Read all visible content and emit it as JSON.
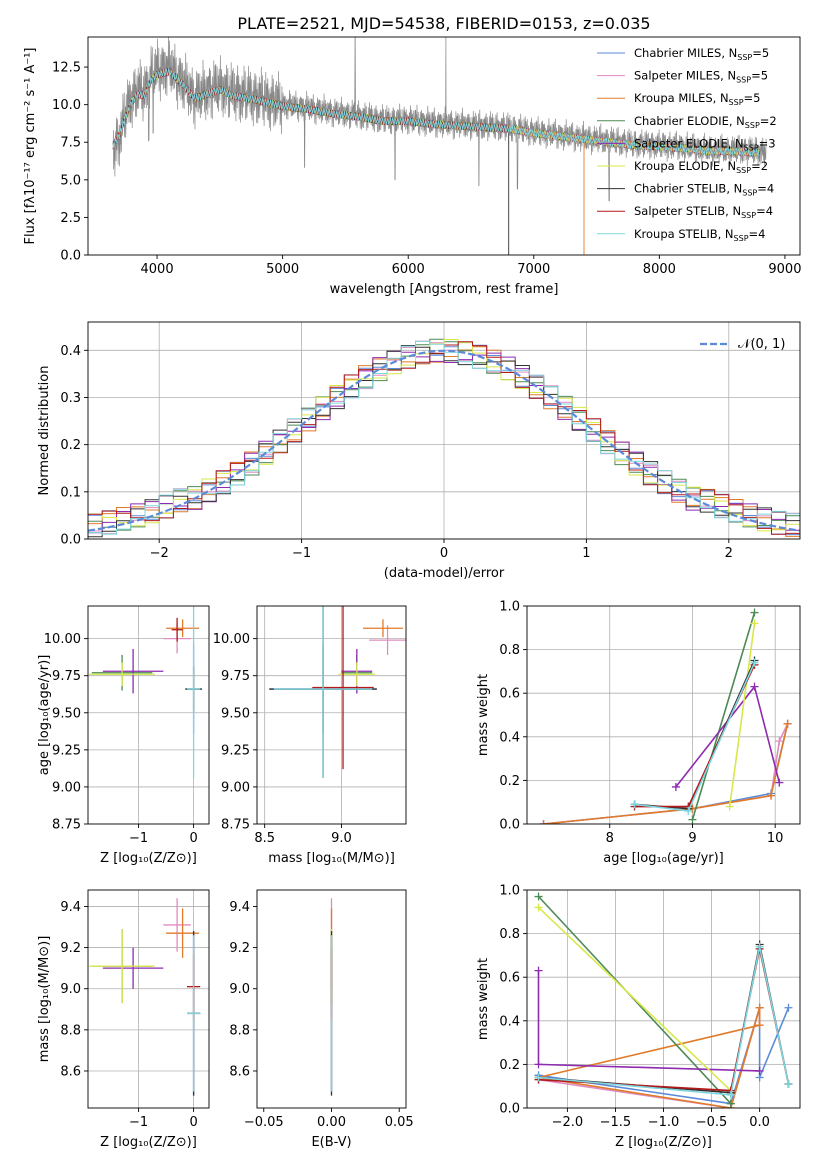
{
  "figure_title": "PLATE=2521, MJD=54538, FIBERID=0153, z=0.035",
  "legend_entries": [
    {
      "name": "Chabrier MILES, N_SSP=5",
      "prefix": "Chabrier MILES, N",
      "sub": "SSP",
      "suffix": "=5",
      "color": "#5b8bd8"
    },
    {
      "name": "Salpeter MILES, N_SSP=5",
      "prefix": "Salpeter MILES, N",
      "sub": "SSP",
      "suffix": "=5",
      "color": "#e08cc0"
    },
    {
      "name": "Kroupa MILES, N_SSP=5",
      "prefix": "Kroupa MILES, N",
      "sub": "SSP",
      "suffix": "=5",
      "color": "#e07b2a"
    },
    {
      "name": "Chabrier ELODIE, N_SSP=2",
      "prefix": "Chabrier ELODIE, N",
      "sub": "SSP",
      "suffix": "=2",
      "color": "#4e8a55"
    },
    {
      "name": "Salpeter ELODIE, N_SSP=3",
      "prefix": "Salpeter ELODIE, N",
      "sub": "SSP",
      "suffix": "=3",
      "color": "#8e2bb0"
    },
    {
      "name": "Kroupa ELODIE, N_SSP=2",
      "prefix": "Kroupa ELODIE, N",
      "sub": "SSP",
      "suffix": "=2",
      "color": "#d8e84a"
    },
    {
      "name": "Chabrier STELIB, N_SSP=4",
      "prefix": "Chabrier STELIB, N",
      "sub": "SSP",
      "suffix": "=4",
      "color": "#333333"
    },
    {
      "name": "Salpeter STELIB, N_SSP=4",
      "prefix": "Salpeter STELIB, N",
      "sub": "SSP",
      "suffix": "=4",
      "color": "#b21a1a"
    },
    {
      "name": "Kroupa STELIB, N_SSP=4",
      "prefix": "Kroupa STELIB, N",
      "sub": "SSP",
      "suffix": "=4",
      "color": "#7dd6de"
    }
  ],
  "chart_data": [
    {
      "id": "spectrum",
      "type": "line",
      "xlabel": "wavelength [Angstrom, rest frame]",
      "ylabel": "Flux [fλ10⁻¹⁷ erg cm⁻² s⁻¹ A⁻¹]",
      "xlim": [
        3450,
        9120
      ],
      "ylim": [
        0,
        14.5
      ],
      "xticks": [
        4000,
        5000,
        6000,
        7000,
        8000,
        9000
      ],
      "yticks": [
        0.0,
        2.5,
        5.0,
        7.5,
        10.0,
        12.5
      ],
      "data_color": "#888888",
      "data_x": [
        3650,
        3700,
        3750,
        3800,
        3850,
        3900,
        3950,
        4000,
        4100,
        4200,
        4300,
        4400,
        4500,
        4600,
        4800,
        5000,
        5200,
        5400,
        5600,
        5800,
        6000,
        6200,
        6400,
        6600,
        6800,
        7000,
        7200,
        7400,
        7600,
        7800,
        8000,
        8200,
        8400,
        8600,
        8800
      ],
      "data_y": [
        7.0,
        7.8,
        9.5,
        10.5,
        11.0,
        10.8,
        12.0,
        12.3,
        12.5,
        11.5,
        10.5,
        10.9,
        11.2,
        10.8,
        10.5,
        10.0,
        9.8,
        9.5,
        9.3,
        9.0,
        9.0,
        8.8,
        8.7,
        8.6,
        8.5,
        8.2,
        8.0,
        7.8,
        7.6,
        7.4,
        7.3,
        7.2,
        7.0,
        7.0,
        6.9
      ],
      "model_x": [
        3650,
        3700,
        3750,
        3800,
        3850,
        3900,
        3950,
        4000,
        4100,
        4200,
        4300,
        4400,
        4500,
        4600,
        4800,
        5000,
        5200,
        5400,
        5600,
        5800,
        6000,
        6200,
        6400,
        6600,
        6800,
        7000,
        7200,
        7400,
        7600,
        7800,
        8000,
        8200,
        8400,
        8600,
        8800
      ],
      "model_y": [
        7.3,
        8.0,
        9.2,
        10.2,
        10.7,
        10.6,
        11.6,
        12.0,
        12.2,
        11.4,
        10.4,
        10.7,
        11.0,
        10.6,
        10.3,
        9.9,
        9.7,
        9.4,
        9.2,
        8.9,
        8.9,
        8.7,
        8.6,
        8.5,
        8.4,
        8.1,
        7.9,
        7.7,
        7.5,
        7.3,
        7.2,
        7.1,
        6.9,
        6.9,
        6.8
      ],
      "model_end_x": [
        8800,
        8800,
        7400,
        8800,
        8800,
        8800,
        6800,
        8800,
        8800
      ]
    },
    {
      "id": "residuals",
      "type": "histogram",
      "xlabel": "(data-model)/error",
      "ylabel": "Normed distribution",
      "xlim": [
        -2.5,
        2.5
      ],
      "ylim": [
        0,
        0.46
      ],
      "xticks": [
        -2,
        -1,
        0,
        1,
        2
      ],
      "yticks": [
        0.0,
        0.1,
        0.2,
        0.3,
        0.4
      ],
      "bin_width": 0.1,
      "reference_curve": {
        "name": "𝒩(0, 1)",
        "color": "#5b8bd8"
      }
    },
    {
      "id": "age_vs_Z",
      "type": "scatter",
      "xlabel": "Z [log₁₀(Z/Z⊙)]",
      "ylabel": "age  [log₁₀(age/yr)]",
      "xlim": [
        -1.92,
        0.28
      ],
      "ylim": [
        8.75,
        10.22
      ],
      "xticks": [
        -1,
        0
      ],
      "yticks": [
        8.75,
        9.0,
        9.25,
        9.5,
        9.75,
        10.0
      ],
      "points": [
        {
          "model": 0,
          "x": 0.0,
          "xerr": 0.15,
          "y": 9.66,
          "yerr": 0.3
        },
        {
          "model": 1,
          "x": -0.3,
          "xerr": 0.25,
          "y": 10.0,
          "yerr": 0.1
        },
        {
          "model": 2,
          "x": -0.2,
          "xerr": 0.3,
          "y": 10.07,
          "yerr": 0.06
        },
        {
          "model": 3,
          "x": -1.3,
          "xerr": 0.55,
          "y": 9.77,
          "yerr": 0.12
        },
        {
          "model": 4,
          "x": -1.1,
          "xerr": 0.55,
          "y": 9.78,
          "yerr": 0.15
        },
        {
          "model": 5,
          "x": -1.3,
          "xerr": 0.6,
          "y": 9.76,
          "yerr": 0.08
        },
        {
          "model": 6,
          "x": 0.0,
          "xerr": 0.15,
          "y": 9.66,
          "yerr": 0.15
        },
        {
          "model": 7,
          "x": -0.3,
          "xerr": 0.1,
          "y": 10.06,
          "yerr": 0.08
        },
        {
          "model": 8,
          "x": 0.0,
          "xerr": 0.12,
          "y": 9.66,
          "yerr": 0.6
        }
      ]
    },
    {
      "id": "age_vs_mass",
      "type": "scatter",
      "xlabel": "mass [log₁₀(M/M⊙)]",
      "ylabel": "",
      "xlim": [
        8.45,
        9.42
      ],
      "ylim": [
        8.75,
        10.22
      ],
      "xticks": [
        8.5,
        9.0
      ],
      "yticks": [
        8.75,
        9.0,
        9.25,
        9.5,
        9.75,
        10.0
      ],
      "points": [
        {
          "model": 0,
          "x": 8.88,
          "xerr": 0.35,
          "y": 9.66,
          "yerr": 0.3
        },
        {
          "model": 1,
          "x": 9.3,
          "xerr": 0.12,
          "y": 9.99,
          "yerr": 0.1
        },
        {
          "model": 2,
          "x": 9.27,
          "xerr": 0.13,
          "y": 10.07,
          "yerr": 0.06
        },
        {
          "model": 3,
          "x": 9.1,
          "xerr": 0.1,
          "y": 9.77,
          "yerr": 0.12
        },
        {
          "model": 4,
          "x": 9.1,
          "xerr": 0.1,
          "y": 9.78,
          "yerr": 0.15
        },
        {
          "model": 5,
          "x": 9.1,
          "xerr": 0.12,
          "y": 9.76,
          "yerr": 0.08
        },
        {
          "model": 6,
          "x": 8.88,
          "xerr": 0.35,
          "y": 9.66,
          "yerr": 0.6
        },
        {
          "model": 7,
          "x": 9.01,
          "xerr": 0.2,
          "y": 9.67,
          "yerr": 0.55
        },
        {
          "model": 8,
          "x": 8.88,
          "xerr": 0.32,
          "y": 9.66,
          "yerr": 0.6
        }
      ]
    },
    {
      "id": "weight_vs_age",
      "type": "line",
      "xlabel": "age  [log₁₀(age/yr)]",
      "ylabel": "mass weight",
      "xlim": [
        7.0,
        10.3
      ],
      "ylim": [
        0,
        1.0
      ],
      "xticks": [
        8,
        9,
        10
      ],
      "yticks": [
        0.0,
        0.2,
        0.4,
        0.6,
        0.8,
        1.0
      ],
      "series": [
        {
          "model": 0,
          "x": [
            7.2,
            9.0,
            9.95,
            10.15
          ],
          "y": [
            0.0,
            0.07,
            0.14,
            0.46
          ]
        },
        {
          "model": 1,
          "x": [
            7.2,
            9.0,
            9.95,
            10.05,
            10.15
          ],
          "y": [
            0.0,
            0.07,
            0.13,
            0.38,
            0.46
          ]
        },
        {
          "model": 2,
          "x": [
            7.2,
            9.0,
            9.95,
            10.15
          ],
          "y": [
            0.0,
            0.07,
            0.13,
            0.46
          ]
        },
        {
          "model": 3,
          "x": [
            9.0,
            9.75
          ],
          "y": [
            0.02,
            0.97
          ]
        },
        {
          "model": 4,
          "x": [
            8.8,
            9.75,
            10.05
          ],
          "y": [
            0.17,
            0.63,
            0.19
          ]
        },
        {
          "model": 5,
          "x": [
            9.45,
            9.75
          ],
          "y": [
            0.08,
            0.92
          ]
        },
        {
          "model": 6,
          "x": [
            8.3,
            8.95,
            9.75
          ],
          "y": [
            0.09,
            0.07,
            0.75
          ]
        },
        {
          "model": 7,
          "x": [
            8.3,
            8.95,
            9.75
          ],
          "y": [
            0.08,
            0.08,
            0.73
          ]
        },
        {
          "model": 8,
          "x": [
            8.3,
            8.95,
            9.75
          ],
          "y": [
            0.09,
            0.06,
            0.74
          ]
        }
      ]
    },
    {
      "id": "mass_vs_Z",
      "type": "scatter",
      "xlabel": "Z [log₁₀(Z/Z⊙)]",
      "ylabel": "mass [log₁₀(M/M⊙)]",
      "xlim": [
        -1.92,
        0.28
      ],
      "ylim": [
        8.42,
        9.48
      ],
      "xticks": [
        -1,
        0
      ],
      "yticks": [
        8.6,
        8.8,
        9.0,
        9.2,
        9.4
      ],
      "points": [
        {
          "model": 0,
          "x": 0.0,
          "xerr": 0.12,
          "y": 8.88,
          "yerr": 0.4
        },
        {
          "model": 1,
          "x": -0.3,
          "xerr": 0.25,
          "y": 9.31,
          "yerr": 0.13
        },
        {
          "model": 2,
          "x": -0.2,
          "xerr": 0.3,
          "y": 9.27,
          "yerr": 0.12
        },
        {
          "model": 3,
          "x": -1.3,
          "xerr": 0.55,
          "y": 9.11,
          "yerr": 0.18
        },
        {
          "model": 4,
          "x": -1.1,
          "xerr": 0.55,
          "y": 9.1,
          "yerr": 0.1
        },
        {
          "model": 5,
          "x": -1.3,
          "xerr": 0.6,
          "y": 9.11,
          "yerr": 0.18
        },
        {
          "model": 6,
          "x": 0.0,
          "xerr": 0.12,
          "y": 8.88,
          "yerr": 0.4
        },
        {
          "model": 7,
          "x": 0.0,
          "xerr": 0.12,
          "y": 9.01,
          "yerr": 0.16
        },
        {
          "model": 8,
          "x": 0.0,
          "xerr": 0.12,
          "y": 8.88,
          "yerr": 0.38
        }
      ]
    },
    {
      "id": "mass_vs_EBV",
      "type": "scatter",
      "xlabel": "E(B-V)",
      "ylabel": "",
      "xlim": [
        -0.055,
        0.055
      ],
      "ylim": [
        8.42,
        9.48
      ],
      "xticks": [
        -0.05,
        0.0,
        0.05
      ],
      "yticks": [
        8.6,
        8.8,
        9.0,
        9.2,
        9.4
      ],
      "points": [
        {
          "model": 0,
          "x": 0.0,
          "xerr": 0.0,
          "y": 8.88,
          "yerr": 0.38
        },
        {
          "model": 1,
          "x": 0.0,
          "xerr": 0.0,
          "y": 9.31,
          "yerr": 0.13
        },
        {
          "model": 2,
          "x": 0.0,
          "xerr": 0.0,
          "y": 9.27,
          "yerr": 0.12
        },
        {
          "model": 3,
          "x": 0.0,
          "xerr": 0.0,
          "y": 9.11,
          "yerr": 0.18
        },
        {
          "model": 4,
          "x": 0.0,
          "xerr": 0.0,
          "y": 9.1,
          "yerr": 0.1
        },
        {
          "model": 5,
          "x": 0.0,
          "xerr": 0.0,
          "y": 9.11,
          "yerr": 0.18
        },
        {
          "model": 6,
          "x": 0.0,
          "xerr": 0.0,
          "y": 8.88,
          "yerr": 0.4
        },
        {
          "model": 7,
          "x": 0.0,
          "xerr": 0.0,
          "y": 9.01,
          "yerr": 0.16
        },
        {
          "model": 8,
          "x": 0.0,
          "xerr": 0.0,
          "y": 8.88,
          "yerr": 0.38
        }
      ]
    },
    {
      "id": "weight_vs_Z",
      "type": "line",
      "xlabel": "Z [log₁₀(Z/Z⊙)]",
      "ylabel": "mass weight",
      "xlim": [
        -2.42,
        0.42
      ],
      "ylim": [
        0,
        1.0
      ],
      "xticks": [
        -2.0,
        -1.5,
        -1.0,
        -0.5,
        0.0
      ],
      "yticks": [
        0.0,
        0.2,
        0.4,
        0.6,
        0.8,
        1.0
      ],
      "series": [
        {
          "model": 0,
          "x": [
            -2.3,
            -0.3,
            0.0,
            0.0,
            0.3
          ],
          "y": [
            0.15,
            0.02,
            0.46,
            0.14,
            0.46
          ]
        },
        {
          "model": 1,
          "x": [
            -2.3,
            -0.3,
            0.0,
            0.0
          ],
          "y": [
            0.13,
            0.0,
            0.46,
            0.38
          ]
        },
        {
          "model": 2,
          "x": [
            -2.3,
            -0.3,
            0.0,
            0.0,
            -2.3
          ],
          "y": [
            0.14,
            0.0,
            0.46,
            0.38,
            0.14
          ]
        },
        {
          "model": 3,
          "x": [
            -2.3,
            -0.3
          ],
          "y": [
            0.97,
            0.02
          ]
        },
        {
          "model": 4,
          "x": [
            -2.3,
            -2.3,
            0.0
          ],
          "y": [
            0.63,
            0.2,
            0.17
          ]
        },
        {
          "model": 5,
          "x": [
            -2.3,
            -0.3
          ],
          "y": [
            0.92,
            0.08
          ]
        },
        {
          "model": 6,
          "x": [
            -2.3,
            -0.3,
            0.0,
            0.3
          ],
          "y": [
            0.14,
            0.07,
            0.75,
            0.11
          ]
        },
        {
          "model": 7,
          "x": [
            -2.3,
            -0.3,
            0.0,
            0.3
          ],
          "y": [
            0.13,
            0.08,
            0.73,
            0.11
          ]
        },
        {
          "model": 8,
          "x": [
            -2.3,
            -0.3,
            0.0,
            0.3
          ],
          "y": [
            0.14,
            0.06,
            0.74,
            0.11
          ]
        }
      ]
    }
  ]
}
